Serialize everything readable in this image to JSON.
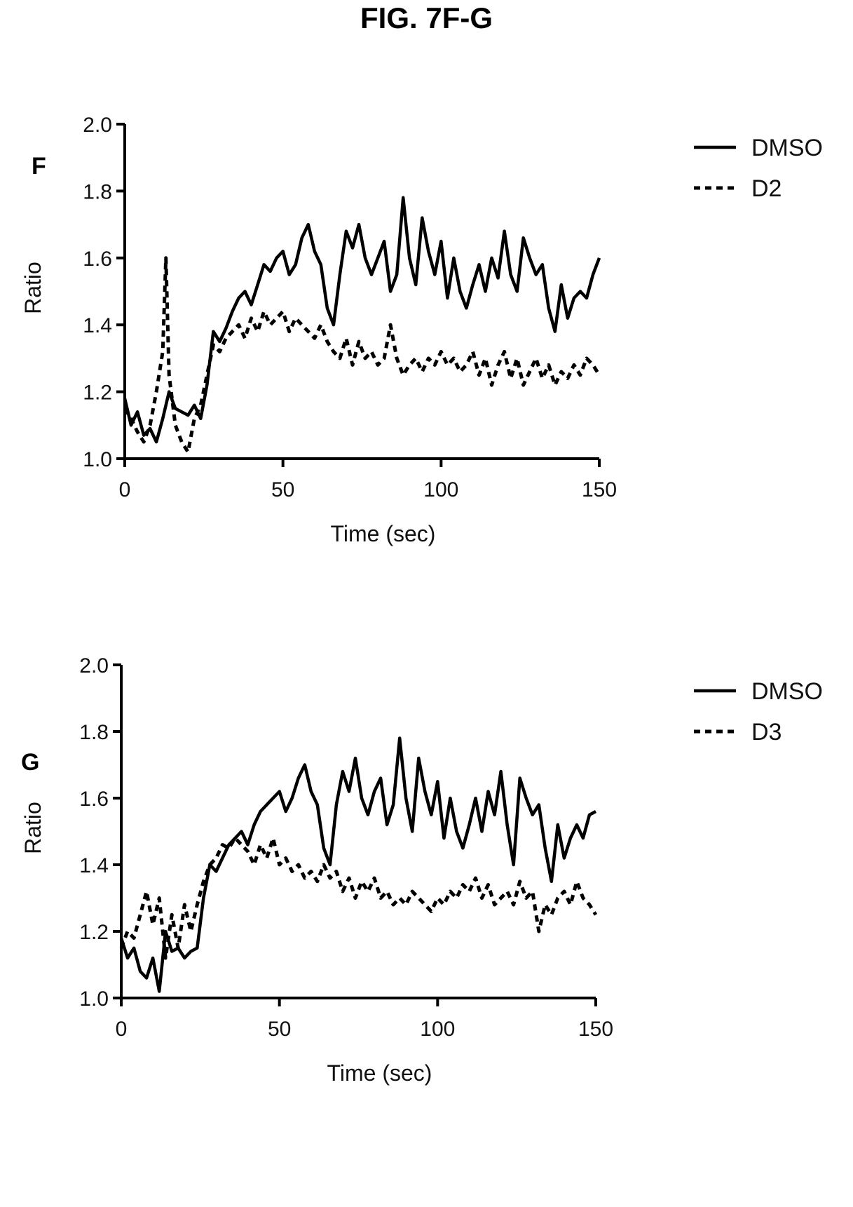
{
  "figure_title": "FIG. 7F-G",
  "chart_data": [
    {
      "panel": "F",
      "type": "line",
      "xlabel": "Time (sec)",
      "ylabel": "Ratio",
      "xlim": [
        0,
        150
      ],
      "ylim": [
        1.0,
        2.0
      ],
      "xticks": [
        "0",
        "50",
        "100",
        "150"
      ],
      "yticks": [
        "1.0",
        "1.2",
        "1.4",
        "1.6",
        "1.8",
        "2.0"
      ],
      "legend_position": "top-right",
      "series": [
        {
          "name": "DMSO",
          "style": "solid",
          "x": [
            0,
            2,
            4,
            6,
            8,
            10,
            12,
            14,
            16,
            18,
            20,
            22,
            24,
            26,
            28,
            30,
            32,
            34,
            36,
            38,
            40,
            42,
            44,
            46,
            48,
            50,
            52,
            54,
            56,
            58,
            60,
            62,
            64,
            66,
            68,
            70,
            72,
            74,
            76,
            78,
            80,
            82,
            84,
            86,
            88,
            90,
            92,
            94,
            96,
            98,
            100,
            102,
            104,
            106,
            108,
            110,
            112,
            114,
            116,
            118,
            120,
            122,
            124,
            126,
            128,
            130,
            132,
            134,
            136,
            138,
            140,
            142,
            144,
            146,
            148,
            150
          ],
          "values": [
            1.18,
            1.1,
            1.14,
            1.07,
            1.09,
            1.05,
            1.12,
            1.2,
            1.15,
            1.14,
            1.13,
            1.16,
            1.12,
            1.22,
            1.38,
            1.35,
            1.39,
            1.44,
            1.48,
            1.5,
            1.46,
            1.52,
            1.58,
            1.56,
            1.6,
            1.62,
            1.55,
            1.58,
            1.66,
            1.7,
            1.62,
            1.58,
            1.45,
            1.4,
            1.55,
            1.68,
            1.63,
            1.7,
            1.6,
            1.55,
            1.6,
            1.65,
            1.5,
            1.55,
            1.78,
            1.6,
            1.52,
            1.72,
            1.62,
            1.55,
            1.65,
            1.48,
            1.6,
            1.5,
            1.45,
            1.52,
            1.58,
            1.5,
            1.6,
            1.54,
            1.68,
            1.55,
            1.5,
            1.66,
            1.6,
            1.55,
            1.58,
            1.45,
            1.38,
            1.52,
            1.42,
            1.48,
            1.5,
            1.48,
            1.55,
            1.6
          ]
        },
        {
          "name": "D2",
          "style": "dashed",
          "x": [
            0,
            2,
            4,
            6,
            8,
            10,
            12,
            13,
            14,
            16,
            18,
            20,
            22,
            24,
            26,
            28,
            30,
            32,
            34,
            36,
            38,
            40,
            42,
            44,
            46,
            48,
            50,
            52,
            54,
            56,
            58,
            60,
            62,
            64,
            66,
            68,
            70,
            72,
            74,
            76,
            78,
            80,
            82,
            84,
            86,
            88,
            90,
            92,
            94,
            96,
            98,
            100,
            102,
            104,
            106,
            108,
            110,
            112,
            114,
            116,
            118,
            120,
            122,
            124,
            126,
            128,
            130,
            132,
            134,
            136,
            138,
            140,
            142,
            144,
            146,
            148,
            150
          ],
          "values": [
            1.15,
            1.12,
            1.08,
            1.05,
            1.1,
            1.2,
            1.32,
            1.6,
            1.25,
            1.1,
            1.05,
            1.02,
            1.12,
            1.16,
            1.25,
            1.34,
            1.32,
            1.36,
            1.38,
            1.4,
            1.36,
            1.42,
            1.38,
            1.44,
            1.4,
            1.42,
            1.44,
            1.38,
            1.42,
            1.4,
            1.38,
            1.36,
            1.4,
            1.35,
            1.32,
            1.3,
            1.36,
            1.28,
            1.35,
            1.3,
            1.32,
            1.28,
            1.3,
            1.4,
            1.3,
            1.25,
            1.28,
            1.3,
            1.26,
            1.3,
            1.28,
            1.32,
            1.28,
            1.3,
            1.26,
            1.28,
            1.32,
            1.25,
            1.3,
            1.22,
            1.28,
            1.32,
            1.24,
            1.3,
            1.22,
            1.26,
            1.3,
            1.24,
            1.28,
            1.22,
            1.26,
            1.24,
            1.28,
            1.25,
            1.3,
            1.28,
            1.25
          ]
        }
      ]
    },
    {
      "panel": "G",
      "type": "line",
      "xlabel": "Time (sec)",
      "ylabel": "Ratio",
      "xlim": [
        0,
        150
      ],
      "ylim": [
        1.0,
        2.0
      ],
      "xticks": [
        "0",
        "50",
        "100",
        "150"
      ],
      "yticks": [
        "1.0",
        "1.2",
        "1.4",
        "1.6",
        "1.8",
        "2.0"
      ],
      "legend_position": "top-right",
      "series": [
        {
          "name": "DMSO",
          "style": "solid",
          "x": [
            0,
            2,
            4,
            6,
            8,
            10,
            12,
            14,
            16,
            18,
            20,
            22,
            24,
            26,
            28,
            30,
            32,
            34,
            36,
            38,
            40,
            42,
            44,
            46,
            48,
            50,
            52,
            54,
            56,
            58,
            60,
            62,
            64,
            66,
            68,
            70,
            72,
            74,
            76,
            78,
            80,
            82,
            84,
            86,
            88,
            90,
            92,
            94,
            96,
            98,
            100,
            102,
            104,
            106,
            108,
            110,
            112,
            114,
            116,
            118,
            120,
            122,
            124,
            126,
            128,
            130,
            132,
            134,
            136,
            138,
            140,
            142,
            144,
            146,
            148,
            150
          ],
          "values": [
            1.18,
            1.12,
            1.15,
            1.08,
            1.06,
            1.12,
            1.02,
            1.2,
            1.14,
            1.15,
            1.12,
            1.14,
            1.15,
            1.3,
            1.4,
            1.38,
            1.42,
            1.46,
            1.48,
            1.5,
            1.46,
            1.52,
            1.56,
            1.58,
            1.6,
            1.62,
            1.56,
            1.6,
            1.66,
            1.7,
            1.62,
            1.58,
            1.45,
            1.4,
            1.58,
            1.68,
            1.62,
            1.72,
            1.6,
            1.55,
            1.62,
            1.66,
            1.52,
            1.58,
            1.78,
            1.6,
            1.5,
            1.72,
            1.62,
            1.55,
            1.65,
            1.48,
            1.6,
            1.5,
            1.45,
            1.52,
            1.6,
            1.5,
            1.62,
            1.55,
            1.68,
            1.52,
            1.4,
            1.66,
            1.6,
            1.55,
            1.58,
            1.45,
            1.35,
            1.52,
            1.42,
            1.48,
            1.52,
            1.48,
            1.55,
            1.56
          ]
        },
        {
          "name": "D3",
          "style": "dashed",
          "x": [
            0,
            2,
            4,
            6,
            8,
            10,
            12,
            14,
            16,
            18,
            20,
            22,
            24,
            26,
            28,
            30,
            32,
            34,
            36,
            38,
            40,
            42,
            44,
            46,
            48,
            50,
            52,
            54,
            56,
            58,
            60,
            62,
            64,
            66,
            68,
            70,
            72,
            74,
            76,
            78,
            80,
            82,
            84,
            86,
            88,
            90,
            92,
            94,
            96,
            98,
            100,
            102,
            104,
            106,
            108,
            110,
            112,
            114,
            116,
            118,
            120,
            122,
            124,
            126,
            128,
            130,
            132,
            134,
            136,
            138,
            140,
            142,
            144,
            146,
            148,
            150
          ],
          "values": [
            1.15,
            1.2,
            1.18,
            1.25,
            1.32,
            1.22,
            1.3,
            1.12,
            1.25,
            1.15,
            1.28,
            1.2,
            1.28,
            1.35,
            1.4,
            1.42,
            1.46,
            1.45,
            1.48,
            1.46,
            1.44,
            1.4,
            1.46,
            1.42,
            1.48,
            1.4,
            1.42,
            1.38,
            1.4,
            1.36,
            1.38,
            1.35,
            1.4,
            1.36,
            1.38,
            1.32,
            1.36,
            1.3,
            1.35,
            1.32,
            1.36,
            1.3,
            1.32,
            1.28,
            1.3,
            1.28,
            1.32,
            1.3,
            1.28,
            1.26,
            1.3,
            1.28,
            1.32,
            1.3,
            1.34,
            1.32,
            1.36,
            1.3,
            1.34,
            1.28,
            1.3,
            1.32,
            1.28,
            1.35,
            1.3,
            1.32,
            1.2,
            1.28,
            1.25,
            1.3,
            1.32,
            1.28,
            1.35,
            1.3,
            1.28,
            1.25
          ]
        }
      ]
    }
  ]
}
